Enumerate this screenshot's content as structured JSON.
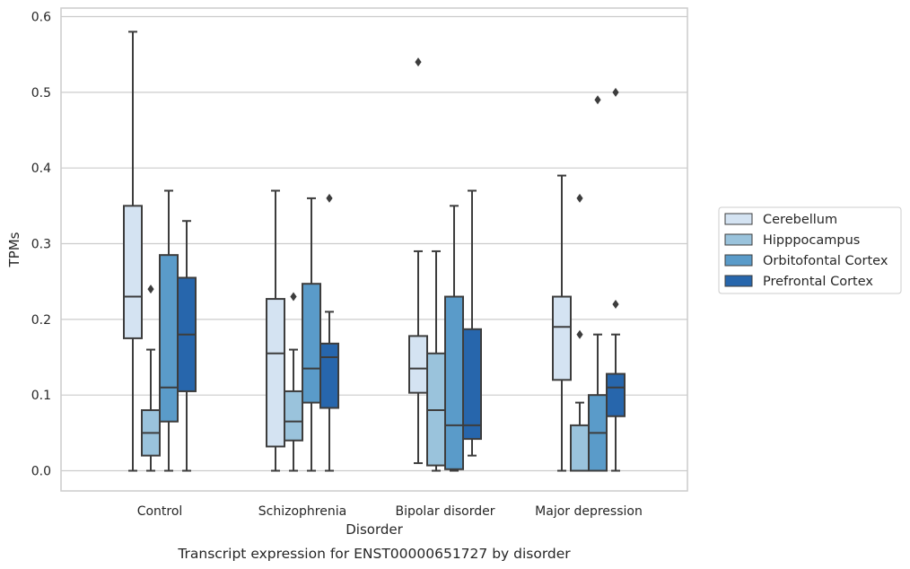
{
  "chart_data": {
    "type": "box",
    "caption": "Transcript expression for ENST00000651727 by disorder",
    "xlabel": "Disorder",
    "ylabel": "TPMs",
    "ylim": [
      -0.029,
      0.61
    ],
    "yticks": [
      0.0,
      0.1,
      0.2,
      0.3,
      0.4,
      0.5,
      0.6
    ],
    "ytick_labels": [
      "0.0",
      "0.1",
      "0.2",
      "0.3",
      "0.4",
      "0.5",
      "0.6"
    ],
    "grid": "horizontal",
    "legend_position": "right",
    "categories": [
      "Control",
      "Schizophrenia",
      "Bipolar disorder",
      "Major depression"
    ],
    "series": [
      {
        "name": "Cerebellum",
        "color": "#d4e3f2",
        "boxes": [
          {
            "whislo": 0.0,
            "q1": 0.175,
            "med": 0.23,
            "q3": 0.35,
            "whishi": 0.58,
            "fliers": []
          },
          {
            "whislo": 0.0,
            "q1": 0.032,
            "med": 0.155,
            "q3": 0.227,
            "whishi": 0.37,
            "fliers": []
          },
          {
            "whislo": 0.01,
            "q1": 0.103,
            "med": 0.135,
            "q3": 0.178,
            "whishi": 0.29,
            "fliers": [
              0.54
            ]
          },
          {
            "whislo": 0.0,
            "q1": 0.12,
            "med": 0.19,
            "q3": 0.23,
            "whishi": 0.39,
            "fliers": []
          }
        ]
      },
      {
        "name": "Hipppocampus",
        "color": "#9ac3dc",
        "boxes": [
          {
            "whislo": 0.0,
            "q1": 0.02,
            "med": 0.05,
            "q3": 0.08,
            "whishi": 0.16,
            "fliers": [
              0.24
            ]
          },
          {
            "whislo": 0.0,
            "q1": 0.04,
            "med": 0.065,
            "q3": 0.105,
            "whishi": 0.16,
            "fliers": [
              0.23
            ]
          },
          {
            "whislo": 0.0,
            "q1": 0.007,
            "med": 0.08,
            "q3": 0.155,
            "whishi": 0.29,
            "fliers": []
          },
          {
            "whislo": 0.0,
            "q1": 0.0,
            "med": 0.0,
            "q3": 0.06,
            "whishi": 0.09,
            "fliers": [
              0.18,
              0.36
            ]
          }
        ]
      },
      {
        "name": "Orbitofontal Cortex",
        "color": "#5a9bc9",
        "boxes": [
          {
            "whislo": 0.0,
            "q1": 0.065,
            "med": 0.11,
            "q3": 0.285,
            "whishi": 0.37,
            "fliers": []
          },
          {
            "whislo": 0.0,
            "q1": 0.09,
            "med": 0.135,
            "q3": 0.247,
            "whishi": 0.36,
            "fliers": []
          },
          {
            "whislo": 0.0,
            "q1": 0.002,
            "med": 0.06,
            "q3": 0.23,
            "whishi": 0.35,
            "fliers": []
          },
          {
            "whislo": 0.0,
            "q1": 0.0,
            "med": 0.05,
            "q3": 0.1,
            "whishi": 0.18,
            "fliers": [
              0.49
            ]
          }
        ]
      },
      {
        "name": "Prefrontal Cortex",
        "color": "#2766ac",
        "boxes": [
          {
            "whislo": 0.0,
            "q1": 0.105,
            "med": 0.18,
            "q3": 0.255,
            "whishi": 0.33,
            "fliers": []
          },
          {
            "whislo": 0.0,
            "q1": 0.083,
            "med": 0.15,
            "q3": 0.168,
            "whishi": 0.21,
            "fliers": [
              0.36
            ]
          },
          {
            "whislo": 0.02,
            "q1": 0.042,
            "med": 0.06,
            "q3": 0.187,
            "whishi": 0.37,
            "fliers": []
          },
          {
            "whislo": 0.0,
            "q1": 0.072,
            "med": 0.11,
            "q3": 0.128,
            "whishi": 0.18,
            "fliers": [
              0.22,
              0.5
            ]
          }
        ]
      }
    ]
  }
}
